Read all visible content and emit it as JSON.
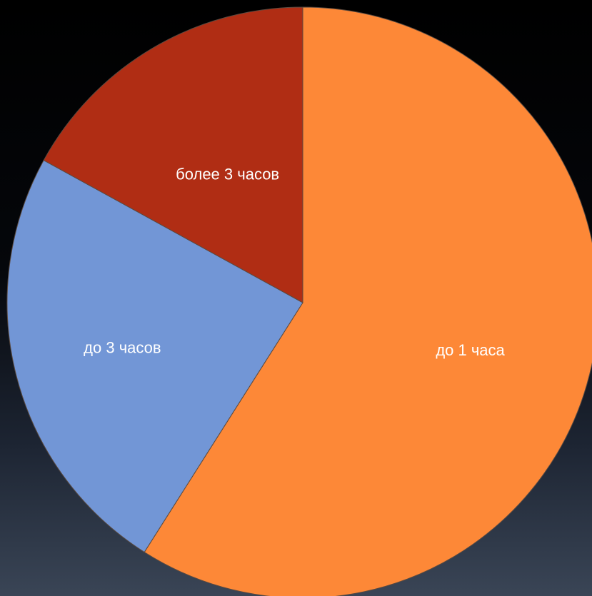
{
  "chart_data": {
    "type": "pie",
    "start_angle_deg": 0,
    "direction": "clockwise",
    "slices": [
      {
        "label": "до 1 часа",
        "value": 59,
        "color": "#fd8837"
      },
      {
        "label": "до 3 часов",
        "value": 24,
        "color": "#7296d6"
      },
      {
        "label": "более 3 часов",
        "value": 17,
        "color": "#b02d14"
      }
    ]
  }
}
